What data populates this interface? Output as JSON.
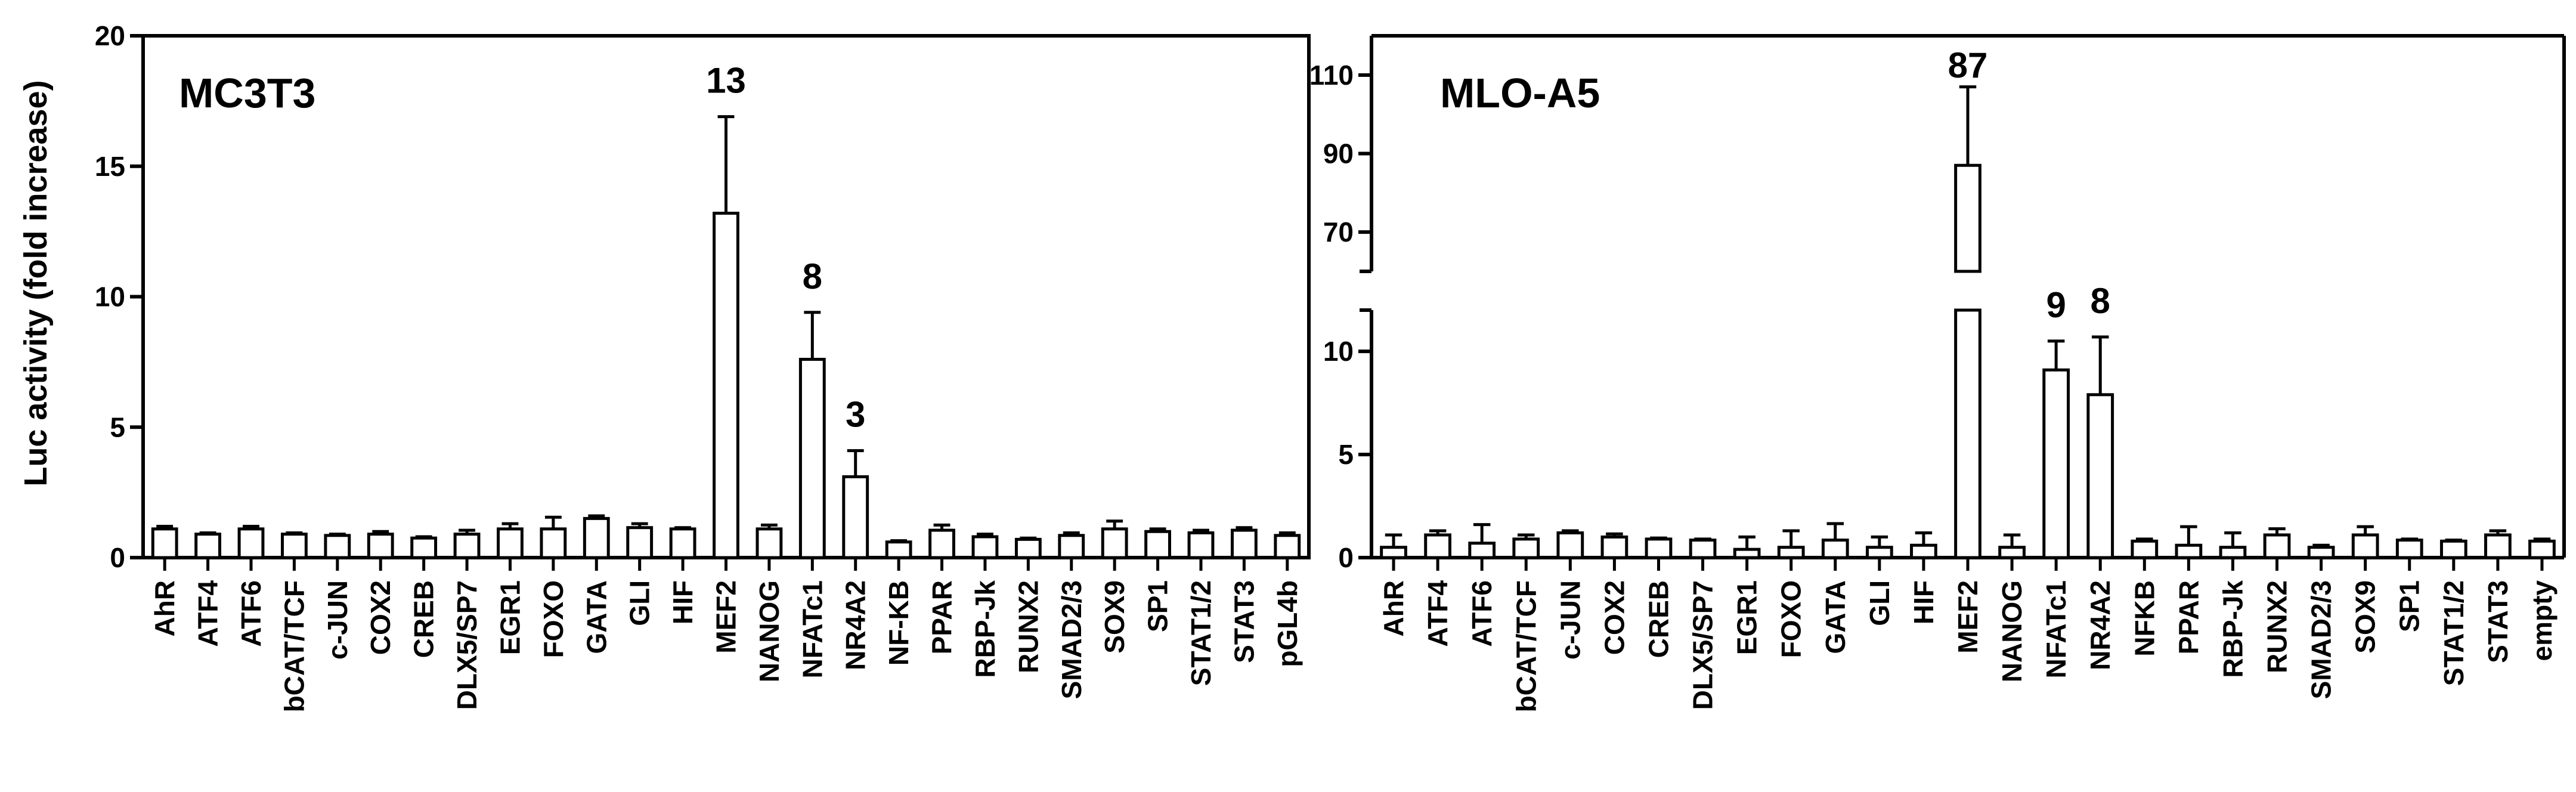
{
  "chart_data": [
    {
      "type": "bar",
      "title": "MC3T3",
      "ylabel": "Luc activity (fold increase)",
      "xlabel": "",
      "ylim": [
        0,
        20
      ],
      "yticks": [
        0,
        5,
        10,
        15,
        20
      ],
      "categories": [
        "AhR",
        "ATF4",
        "ATF6",
        "bCAT/TCF",
        "c-JUN",
        "COX2",
        "CREB",
        "DLX5/SP7",
        "EGR1",
        "FOXO",
        "GATA",
        "GLI",
        "HIF",
        "MEF2",
        "NANOG",
        "NFATc1",
        "NR4A2",
        "NF-KB",
        "PPAR",
        "RBP-Jk",
        "RUNX2",
        "SMAD2/3",
        "SOX9",
        "SP1",
        "STAT1/2",
        "STAT3",
        "pGL4b"
      ],
      "values": [
        1.1,
        0.9,
        1.1,
        0.9,
        0.85,
        0.9,
        0.75,
        0.9,
        1.1,
        1.1,
        1.5,
        1.15,
        1.1,
        13.2,
        1.1,
        7.6,
        3.1,
        0.6,
        1.05,
        0.8,
        0.7,
        0.85,
        1.1,
        1.0,
        0.95,
        1.05,
        0.85
      ],
      "errors": [
        0.1,
        0.05,
        0.1,
        0.05,
        0.05,
        0.1,
        0.05,
        0.15,
        0.2,
        0.45,
        0.1,
        0.15,
        0.05,
        3.7,
        0.15,
        1.8,
        1.0,
        0.05,
        0.2,
        0.1,
        0.05,
        0.1,
        0.3,
        0.1,
        0.1,
        0.1,
        0.1
      ],
      "annotations": [
        {
          "category": "MEF2",
          "text": "13"
        },
        {
          "category": "NFATc1",
          "text": "8"
        },
        {
          "category": "NR4A2",
          "text": "3"
        }
      ]
    },
    {
      "type": "bar",
      "title": "MLO-A5",
      "ylabel": "",
      "xlabel": "",
      "ylim": [
        0,
        120
      ],
      "axis_break": [
        12,
        60
      ],
      "yticks": [
        0,
        5,
        10,
        70,
        90,
        110
      ],
      "categories": [
        "AhR",
        "ATF4",
        "ATF6",
        "bCAT/TCF",
        "c-JUN",
        "COX2",
        "CREB",
        "DLX5/SP7",
        "EGR1",
        "FOXO",
        "GATA",
        "GLI",
        "HIF",
        "MEF2",
        "NANOG",
        "NFATc1",
        "NR4A2",
        "NFKB",
        "PPAR",
        "RBP-Jk",
        "RUNX2",
        "SMAD2/3",
        "SOX9",
        "SP1",
        "STAT1/2",
        "STAT3",
        "empty"
      ],
      "values": [
        0.5,
        1.1,
        0.7,
        0.9,
        1.2,
        1.0,
        0.9,
        0.85,
        0.4,
        0.5,
        0.85,
        0.5,
        0.6,
        87,
        0.5,
        9.1,
        7.9,
        0.8,
        0.6,
        0.5,
        1.1,
        0.5,
        1.1,
        0.85,
        0.8,
        1.1,
        0.8
      ],
      "errors": [
        0.6,
        0.2,
        0.9,
        0.2,
        0.1,
        0.15,
        0.05,
        0.05,
        0.6,
        0.8,
        0.8,
        0.5,
        0.6,
        20,
        0.6,
        1.4,
        2.8,
        0.1,
        0.9,
        0.7,
        0.3,
        0.1,
        0.4,
        0.05,
        0.05,
        0.2,
        0.1
      ],
      "annotations": [
        {
          "category": "MEF2",
          "text": "87"
        },
        {
          "category": "NFATc1",
          "text": "9"
        },
        {
          "category": "NR4A2",
          "text": "8"
        }
      ]
    }
  ]
}
